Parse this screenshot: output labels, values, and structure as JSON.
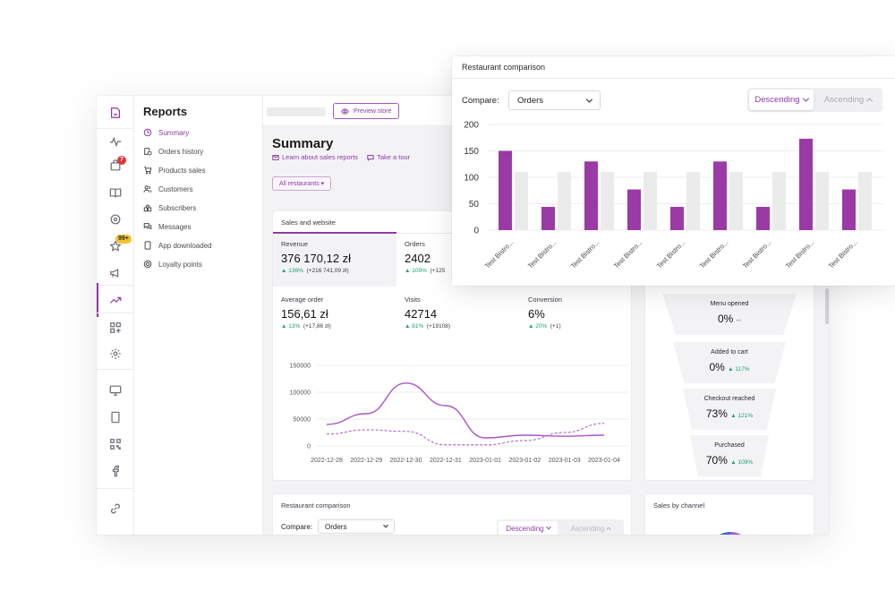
{
  "rail": {
    "items": [
      "book-icon",
      "activity-icon",
      "bag-icon",
      "menu-icon",
      "location-icon",
      "star-icon",
      "megaphone-icon",
      "trending-icon",
      "apps-icon",
      "settings-icon",
      "monitor-icon",
      "tablet-icon",
      "qr-icon",
      "facebook-icon",
      "link-icon"
    ],
    "badge_bag": "7",
    "badge_star": "99+"
  },
  "nav": {
    "title": "Reports",
    "items": [
      {
        "label": "Summary",
        "icon": "clock-icon"
      },
      {
        "label": "Orders history",
        "icon": "history-icon"
      },
      {
        "label": "Products sales",
        "icon": "cart-icon"
      },
      {
        "label": "Customers",
        "icon": "users-icon"
      },
      {
        "label": "Subscribers",
        "icon": "subscribers-icon"
      },
      {
        "label": "Messages",
        "icon": "messages-icon"
      },
      {
        "label": "App downloaded",
        "icon": "phone-icon"
      },
      {
        "label": "Loyalty points",
        "icon": "loyalty-icon"
      }
    ]
  },
  "topbar": {
    "preview_label": "Preview store"
  },
  "page": {
    "title": "Summary",
    "learn_link": "Learn about sales reports",
    "tour_link": "Take a tour",
    "filter_label": "All restaurants ▾"
  },
  "sales": {
    "title": "Sales and website",
    "metrics": [
      {
        "label": "Revenue",
        "value": "376 170,12 zł",
        "pct": "136%",
        "abs": "(+216 741,09 zł)"
      },
      {
        "label": "Orders",
        "value": "2402",
        "pct": "109%",
        "abs": "(+125"
      },
      {
        "label": "Average order",
        "value": "156,61 zł",
        "pct": "13%",
        "abs": "(+17,86 zł)"
      },
      {
        "label": "Visits",
        "value": "42714",
        "pct": "81%",
        "abs": "(+19108)"
      },
      {
        "label": "Conversion",
        "value": "6%",
        "pct": "20%",
        "abs": "(+1)"
      }
    ]
  },
  "chart_data": [
    {
      "type": "line",
      "title": "",
      "x": [
        "2022-12-28",
        "2022-12-29",
        "2022-12-30",
        "2022-12-31",
        "2023-01-01",
        "2023-01-02",
        "2023-01-03",
        "2023-01-04"
      ],
      "ylim": [
        0,
        150000
      ],
      "yticks": [
        "150000",
        "100000",
        "50000",
        "0"
      ],
      "series": [
        {
          "values": [
            40000,
            60000,
            117000,
            75000,
            15000,
            20000,
            18000,
            20000
          ],
          "color": "#a855c7",
          "style": "solid"
        },
        {
          "values": [
            22000,
            30000,
            27000,
            2000,
            2000,
            10000,
            25000,
            42000
          ],
          "color": "#a855c7",
          "style": "dashed"
        }
      ]
    },
    {
      "type": "bar",
      "title": "Restaurant comparison",
      "categories": [
        "Test Bistro...",
        "Test Bistro...",
        "Test Bistro...",
        "Test Bistro...",
        "Test Bistro...",
        "Test Bistro...",
        "Test Bistro...",
        "Test Bistro...",
        "Test Bistro..."
      ],
      "ylim": [
        0,
        200
      ],
      "yticks": [
        "200",
        "150",
        "100",
        "50",
        "0"
      ],
      "series": [
        {
          "values": [
            150,
            44,
            130,
            77,
            44,
            130,
            44,
            173,
            77
          ],
          "color": "#9b3aa6"
        },
        {
          "values": [
            110,
            110,
            110,
            110,
            110,
            110,
            110,
            110,
            110
          ],
          "color": "#ebebeb"
        }
      ]
    }
  ],
  "funnel": {
    "steps": [
      {
        "label": "Menu opened",
        "value": "0%",
        "chg": "--",
        "kind": "dash"
      },
      {
        "label": "Added to cart",
        "value": "0%",
        "chg": "117%",
        "kind": "up"
      },
      {
        "label": "Checkout reached",
        "value": "73%",
        "chg": "121%",
        "kind": "up"
      },
      {
        "label": "Purchased",
        "value": "70%",
        "chg": "109%",
        "kind": "up"
      }
    ]
  },
  "comparison_small": {
    "title": "Restaurant comparison",
    "compare_label": "Compare:",
    "compare_value": "Orders",
    "desc": "Descending",
    "asc": "Ascending"
  },
  "sales_channel": {
    "title": "Sales by channel"
  },
  "overlay": {
    "title": "Restaurant comparison",
    "compare_label": "Compare:",
    "compare_value": "Orders",
    "desc": "Descending",
    "asc": "Ascending"
  },
  "colors": {
    "accent": "#8e3aa7",
    "bar": "#9b3aa6",
    "positive": "#22a06b"
  }
}
